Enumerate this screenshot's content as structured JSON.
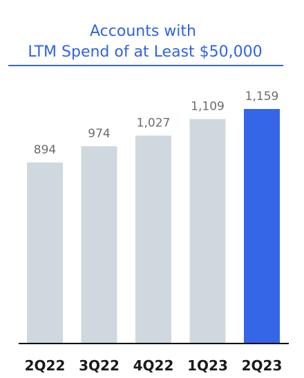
{
  "chart_data": {
    "type": "bar",
    "title": [
      "Accounts with",
      "LTM Spend of at Least $50,000"
    ],
    "categories": [
      "2Q22",
      "3Q22",
      "4Q22",
      "1Q23",
      "2Q23"
    ],
    "values": [
      894,
      974,
      1027,
      1109,
      1159
    ],
    "value_labels": [
      "894",
      "974",
      "1,027",
      "1,109",
      "1,159"
    ],
    "highlight_index": 4,
    "ylim": [
      0,
      1300
    ],
    "grid": false,
    "xlabel": "",
    "ylabel": ""
  },
  "colors": {
    "title": "#2f63e3",
    "rule": "#2f63e3",
    "bar": "#cfd8de",
    "bar_highlight": "#3566e8",
    "axis": "#000000",
    "value_label": "#6b6b6b",
    "category_label": "#1a1a1a"
  }
}
